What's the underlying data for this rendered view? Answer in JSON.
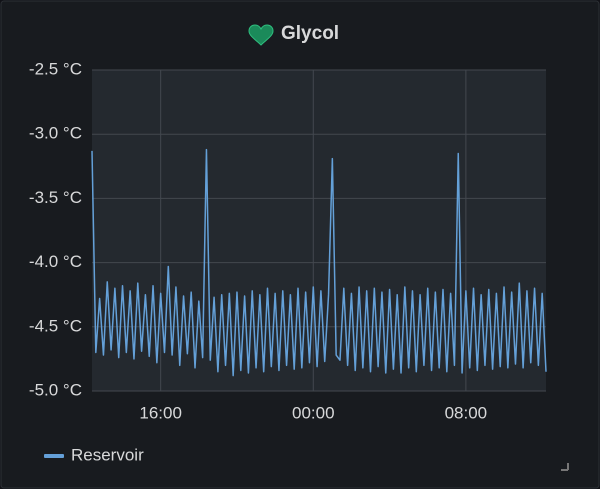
{
  "chart_data": {
    "type": "line",
    "title": "Glycol",
    "x": [
      12.4,
      12.6,
      12.8,
      13,
      13.2,
      13.4,
      13.6,
      13.8,
      14,
      14.2,
      14.4,
      14.6,
      14.8,
      15,
      15.2,
      15.4,
      15.6,
      15.8,
      16,
      16.2,
      16.4,
      16.6,
      16.8,
      17,
      17.2,
      17.4,
      17.6,
      17.8,
      18,
      18.2,
      18.4,
      18.6,
      18.8,
      19,
      19.2,
      19.4,
      19.6,
      19.8,
      20,
      20.2,
      20.4,
      20.6,
      20.8,
      21,
      21.2,
      21.4,
      21.6,
      21.8,
      22,
      22.2,
      22.4,
      22.6,
      22.8,
      23,
      23.2,
      23.4,
      23.6,
      23.8,
      24,
      24.2,
      24.4,
      24.6,
      24.8,
      25,
      25.2,
      25.4,
      25.6,
      25.8,
      26,
      26.2,
      26.4,
      26.6,
      26.8,
      27,
      27.2,
      27.4,
      27.6,
      27.8,
      28,
      28.2,
      28.4,
      28.6,
      28.8,
      29,
      29.2,
      29.4,
      29.6,
      29.8,
      30,
      30.2,
      30.4,
      30.6,
      30.8,
      31,
      31.2,
      31.4,
      31.6,
      31.8,
      32,
      32.2,
      32.4,
      32.6,
      32.8,
      33,
      33.2,
      33.4,
      33.6,
      33.8,
      34,
      34.2,
      34.4,
      34.6,
      34.8,
      35,
      35.2,
      35.4,
      35.6,
      35.8,
      36,
      36.2
    ],
    "series": [
      {
        "name": "Reservoir",
        "color": "#64a0d8",
        "values": [
          -3.13,
          -4.7,
          -4.28,
          -4.72,
          -4.15,
          -4.68,
          -4.2,
          -4.74,
          -4.18,
          -4.7,
          -4.22,
          -4.75,
          -4.16,
          -4.69,
          -4.25,
          -4.73,
          -4.18,
          -4.78,
          -4.24,
          -4.7,
          -4.03,
          -4.72,
          -4.19,
          -4.8,
          -4.26,
          -4.71,
          -4.23,
          -4.82,
          -4.3,
          -4.74,
          -3.12,
          -4.76,
          -4.27,
          -4.85,
          -4.25,
          -4.8,
          -4.24,
          -4.88,
          -4.23,
          -4.84,
          -4.26,
          -4.86,
          -4.22,
          -4.82,
          -4.25,
          -4.85,
          -4.2,
          -4.81,
          -4.24,
          -4.84,
          -4.22,
          -4.8,
          -4.25,
          -4.83,
          -4.2,
          -4.82,
          -4.23,
          -4.78,
          -4.19,
          -4.81,
          -4.22,
          -4.77,
          -4.25,
          -3.19,
          -4.72,
          -4.76,
          -4.2,
          -4.8,
          -4.24,
          -4.84,
          -4.19,
          -4.82,
          -4.22,
          -4.85,
          -4.2,
          -4.81,
          -4.23,
          -4.86,
          -4.21,
          -4.83,
          -4.25,
          -4.86,
          -4.19,
          -4.82,
          -4.22,
          -4.85,
          -4.25,
          -4.8,
          -4.2,
          -4.84,
          -4.23,
          -4.82,
          -4.21,
          -4.85,
          -4.24,
          -4.8,
          -3.15,
          -4.86,
          -4.22,
          -4.82,
          -4.2,
          -4.84,
          -4.25,
          -4.8,
          -4.21,
          -4.83,
          -4.24,
          -4.81,
          -4.19,
          -4.82,
          -4.23,
          -4.79,
          -4.16,
          -4.82,
          -4.22,
          -4.78,
          -4.2,
          -4.8,
          -4.24,
          -4.85
        ]
      }
    ],
    "xlim": [
      12.4,
      36.2
    ],
    "xticks": [
      {
        "value": 16,
        "label": "16:00"
      },
      {
        "value": 24,
        "label": "00:00"
      },
      {
        "value": 32,
        "label": "08:00"
      }
    ],
    "ylim": [
      -5.0,
      -2.5
    ],
    "yticks": [
      {
        "value": -5.0,
        "label": "-5.0 °C"
      },
      {
        "value": -4.5,
        "label": "-4.5 °C"
      },
      {
        "value": -4.0,
        "label": "-4.0 °C"
      },
      {
        "value": -3.5,
        "label": "-3.5 °C"
      },
      {
        "value": -3.0,
        "label": "-3.0 °C"
      },
      {
        "value": -2.5,
        "label": "-2.5 °C"
      }
    ],
    "grid": true
  }
}
